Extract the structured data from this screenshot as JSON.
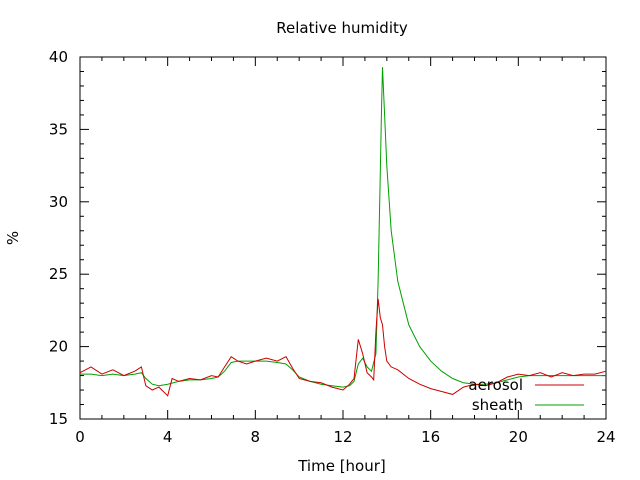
{
  "chart_data": {
    "type": "line",
    "title": "Relative humidity",
    "xlabel": "Time [hour]",
    "ylabel": "%",
    "xlim": [
      0,
      24
    ],
    "ylim": [
      15,
      40
    ],
    "xticks": [
      0,
      4,
      8,
      12,
      16,
      20,
      24
    ],
    "yticks": [
      15,
      20,
      25,
      30,
      35,
      40
    ],
    "grid": false,
    "legend_position": "bottom-right",
    "series": [
      {
        "name": "aerosol",
        "color": "#cc0000",
        "x": [
          0,
          0.5,
          1,
          1.5,
          2,
          2.5,
          2.8,
          3.0,
          3.3,
          3.6,
          4.0,
          4.2,
          4.5,
          5.0,
          5.5,
          6.0,
          6.3,
          6.6,
          6.9,
          7.2,
          7.6,
          8.0,
          8.5,
          9.0,
          9.4,
          9.7,
          10.0,
          10.5,
          11.0,
          11.5,
          12.0,
          12.3,
          12.5,
          12.7,
          12.9,
          13.1,
          13.3,
          13.4,
          13.5,
          13.6,
          13.7,
          13.8,
          13.9,
          14.0,
          14.2,
          14.5,
          15.0,
          15.5,
          16.0,
          16.5,
          17.0,
          17.5,
          18.0,
          18.5,
          19.0,
          19.5,
          20.0,
          20.5,
          21.0,
          21.5,
          22.0,
          22.5,
          23.0,
          23.5,
          24.0
        ],
        "values": [
          18.2,
          18.6,
          18.1,
          18.4,
          18.0,
          18.3,
          18.6,
          17.3,
          17.0,
          17.2,
          16.6,
          17.8,
          17.6,
          17.8,
          17.7,
          18.0,
          17.9,
          18.6,
          19.3,
          19.0,
          18.8,
          19.0,
          19.2,
          19.0,
          19.3,
          18.5,
          17.8,
          17.6,
          17.5,
          17.2,
          17.0,
          17.4,
          17.8,
          20.5,
          19.5,
          18.2,
          17.9,
          17.7,
          21.0,
          23.3,
          22.0,
          21.5,
          20.0,
          19.0,
          18.6,
          18.4,
          17.8,
          17.4,
          17.1,
          16.9,
          16.7,
          17.2,
          17.4,
          17.3,
          17.5,
          17.9,
          18.1,
          18.0,
          18.2,
          17.9,
          18.2,
          18.0,
          18.1,
          18.1,
          18.3
        ]
      },
      {
        "name": "sheath",
        "color": "#00a000",
        "x": [
          0,
          0.5,
          1,
          1.5,
          2,
          2.5,
          2.8,
          3.0,
          3.3,
          3.6,
          4.0,
          4.5,
          5.0,
          5.5,
          6.0,
          6.3,
          6.6,
          6.9,
          7.2,
          7.6,
          8.0,
          8.5,
          9.0,
          9.4,
          9.7,
          10.0,
          10.5,
          11.0,
          11.5,
          12.0,
          12.3,
          12.5,
          12.7,
          12.9,
          13.1,
          13.3,
          13.5,
          13.6,
          13.7,
          13.75,
          13.8,
          13.9,
          14.0,
          14.2,
          14.5,
          15.0,
          15.5,
          16.0,
          16.5,
          17.0,
          17.5,
          18.0,
          18.5,
          19.0,
          19.5,
          20.0,
          20.5,
          21.0,
          21.5,
          22.0,
          22.5,
          23.0,
          23.5,
          24.0
        ],
        "values": [
          18.1,
          18.1,
          18.0,
          18.1,
          18.0,
          18.1,
          18.2,
          17.8,
          17.4,
          17.3,
          17.4,
          17.6,
          17.7,
          17.7,
          17.8,
          17.9,
          18.3,
          18.9,
          19.0,
          19.0,
          19.0,
          19.0,
          18.9,
          18.8,
          18.4,
          17.9,
          17.6,
          17.4,
          17.3,
          17.2,
          17.3,
          17.6,
          18.8,
          19.2,
          18.6,
          18.3,
          19.5,
          24.5,
          32.0,
          36.0,
          39.3,
          36.0,
          32.5,
          28.0,
          24.5,
          21.5,
          20.0,
          19.0,
          18.3,
          17.8,
          17.5,
          17.4,
          17.4,
          17.5,
          17.7,
          17.9,
          18.0,
          18.0,
          18.0,
          18.0,
          18.0,
          18.0,
          18.0,
          18.0
        ]
      }
    ]
  }
}
